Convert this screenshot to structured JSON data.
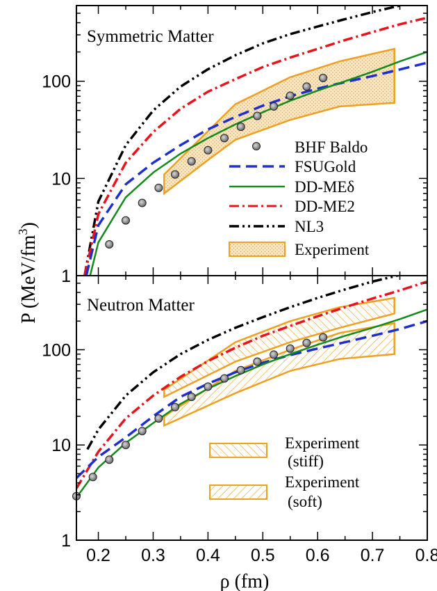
{
  "chart_data": {
    "type": "line",
    "xlabel": "ρ (fm)",
    "ylabel_main": "P (MeV/fm",
    "ylabel_sup": "3",
    "ylabel_close": ")",
    "xlim": [
      0.16,
      0.8
    ],
    "xticks": [
      0.2,
      0.3,
      0.4,
      0.5,
      0.6,
      0.7,
      0.8
    ],
    "xtick_labels": [
      "0.2",
      "0.3",
      "0.4",
      "0.5",
      "0.6",
      "0.7",
      "0.8"
    ],
    "ylog": true,
    "legend_labels": {
      "bhf": "BHF Baldo",
      "fsu": "FSUGold",
      "ddmed": "DD-MEδ",
      "ddme2": "DD-ME2",
      "nl3": "NL3",
      "exp": "Experiment",
      "exp_stiff_1": "Experiment",
      "exp_stiff_2": "(stiff)",
      "exp_soft_1": "Experiment",
      "exp_soft_2": "(soft)"
    },
    "panels": [
      {
        "id": "top",
        "title": "Symmetric Matter",
        "ylim": [
          1,
          600
        ],
        "yticks": [
          1,
          10,
          100
        ],
        "ytick_labels": [
          "1",
          "10",
          "100"
        ],
        "series": [
          {
            "key": "nl3",
            "name": "NL3",
            "color": "#000000",
            "dash": "14,5,3,5,3,5",
            "x": [
              0.175,
              0.2,
              0.25,
              0.3,
              0.35,
              0.4,
              0.45,
              0.5,
              0.55,
              0.6,
              0.65,
              0.7,
              0.75
            ],
            "y": [
              1,
              5.8,
              22,
              50,
              88,
              133,
              185,
              245,
              305,
              365,
              435,
              515,
              600
            ]
          },
          {
            "key": "ddme2",
            "name": "DD-ME2",
            "color": "#e8141c",
            "dash": "14,5,3,5",
            "x": [
              0.175,
              0.2,
              0.25,
              0.3,
              0.35,
              0.4,
              0.45,
              0.5,
              0.55,
              0.6,
              0.65,
              0.7,
              0.75,
              0.8
            ],
            "y": [
              1,
              4.3,
              14.5,
              30,
              52,
              78,
              105,
              140,
              175,
              215,
              265,
              320,
              385,
              450
            ]
          },
          {
            "key": "fsu",
            "name": "FSUGold",
            "color": "#1e2fd0",
            "dash": "16,8",
            "x": [
              0.178,
              0.2,
              0.25,
              0.3,
              0.35,
              0.4,
              0.45,
              0.5,
              0.55,
              0.6,
              0.65,
              0.7,
              0.75,
              0.8
            ],
            "y": [
              1,
              3.3,
              8.7,
              14.5,
              22,
              32,
              43,
              56,
              70,
              84,
              98,
              113,
              132,
              155
            ]
          },
          {
            "key": "ddmed",
            "name": "DD-MEδ",
            "color": "#138a1a",
            "dash": "",
            "x": [
              0.185,
              0.2,
              0.25,
              0.3,
              0.35,
              0.4,
              0.45,
              0.5,
              0.55,
              0.6,
              0.65,
              0.7,
              0.75,
              0.8
            ],
            "y": [
              1,
              2.2,
              6.4,
              11.5,
              18,
              26,
              36,
              48,
              63,
              80,
              100,
              125,
              160,
              200
            ]
          }
        ],
        "points": {
          "key": "bhf",
          "name": "BHF Baldo",
          "x": [
            0.22,
            0.25,
            0.28,
            0.31,
            0.34,
            0.37,
            0.4,
            0.43,
            0.46,
            0.49,
            0.52,
            0.55,
            0.58,
            0.61
          ],
          "y": [
            2.1,
            3.7,
            5.6,
            8,
            11,
            15,
            19.5,
            26,
            34,
            44,
            55,
            71,
            88,
            108
          ]
        },
        "bands": [
          {
            "key": "exp",
            "fill": "dots",
            "upper_x": [
              0.32,
              0.45,
              0.55,
              0.64,
              0.74
            ],
            "upper_y": [
              11,
              58,
              110,
              160,
              215
            ],
            "lower_x": [
              0.32,
              0.4,
              0.45,
              0.55,
              0.64,
              0.74
            ],
            "lower_y": [
              7,
              15.5,
              25,
              40,
              55,
              60
            ]
          }
        ]
      },
      {
        "id": "bottom",
        "title": "Neutron Matter",
        "ylim": [
          1,
          600
        ],
        "yticks": [
          1,
          10,
          100
        ],
        "ytick_labels": [
          "1",
          "10",
          "100"
        ],
        "series": [
          {
            "key": "nl3",
            "name": "NL3",
            "color": "#000000",
            "dash": "14,5,3,5,3,5",
            "x": [
              0.18,
              0.2,
              0.25,
              0.3,
              0.35,
              0.4,
              0.45,
              0.5,
              0.55,
              0.6,
              0.65,
              0.7,
              0.75
            ],
            "y": [
              9,
              14.5,
              33,
              58,
              90,
              127,
              170,
              220,
              280,
              350,
              430,
              520,
              610
            ]
          },
          {
            "key": "ddme2",
            "name": "DD-ME2",
            "color": "#e8141c",
            "dash": "14,5,3,5",
            "x": [
              0.16,
              0.2,
              0.25,
              0.3,
              0.35,
              0.4,
              0.45,
              0.5,
              0.55,
              0.6,
              0.65,
              0.7,
              0.75,
              0.8
            ],
            "y": [
              3.5,
              8.5,
              19,
              33,
              52,
              76,
              105,
              140,
              178,
              225,
              280,
              345,
              420,
              520
            ]
          },
          {
            "key": "fsu",
            "name": "FSUGold",
            "color": "#1e2fd0",
            "dash": "16,8",
            "x": [
              0.16,
              0.2,
              0.25,
              0.3,
              0.35,
              0.4,
              0.45,
              0.5,
              0.55,
              0.6,
              0.65,
              0.7,
              0.75,
              0.8
            ],
            "y": [
              4.5,
              7.5,
              12,
              20,
              32,
              44,
              58,
              73,
              88,
              103,
              120,
              140,
              165,
              200
            ]
          },
          {
            "key": "ddmed",
            "name": "DD-MEδ",
            "color": "#138a1a",
            "dash": "",
            "x": [
              0.16,
              0.2,
              0.25,
              0.3,
              0.35,
              0.4,
              0.45,
              0.5,
              0.55,
              0.6,
              0.65,
              0.7,
              0.75,
              0.8
            ],
            "y": [
              2.8,
              5.8,
              10.5,
              17,
              27,
              39,
              53,
              70,
              90,
              113,
              140,
              170,
              210,
              265
            ]
          }
        ],
        "points": {
          "key": "bhf",
          "name": "BHF Baldo",
          "x": [
            0.16,
            0.19,
            0.22,
            0.25,
            0.28,
            0.31,
            0.34,
            0.37,
            0.4,
            0.43,
            0.46,
            0.49,
            0.52,
            0.55,
            0.58,
            0.61
          ],
          "y": [
            2.9,
            4.6,
            7,
            10,
            14,
            19,
            25,
            32,
            41,
            50,
            61,
            75,
            89,
            103,
            118,
            135
          ]
        },
        "bands": [
          {
            "key": "stiff",
            "fill": "hatch-back",
            "upper_x": [
              0.32,
              0.45,
              0.55,
              0.64,
              0.74
            ],
            "upper_y": [
              38,
              120,
              200,
              280,
              350
            ],
            "lower_x": [
              0.32,
              0.45,
              0.55,
              0.64,
              0.74
            ],
            "lower_y": [
              32,
              75,
              120,
              170,
              240
            ]
          },
          {
            "key": "soft",
            "fill": "hatch-fwd",
            "upper_x": [
              0.32,
              0.45,
              0.55,
              0.64,
              0.74
            ],
            "upper_y": [
              20,
              60,
              100,
              150,
              190
            ],
            "lower_x": [
              0.32,
              0.45,
              0.55,
              0.64,
              0.74
            ],
            "lower_y": [
              16,
              35,
              60,
              80,
              90
            ]
          }
        ]
      }
    ]
  }
}
